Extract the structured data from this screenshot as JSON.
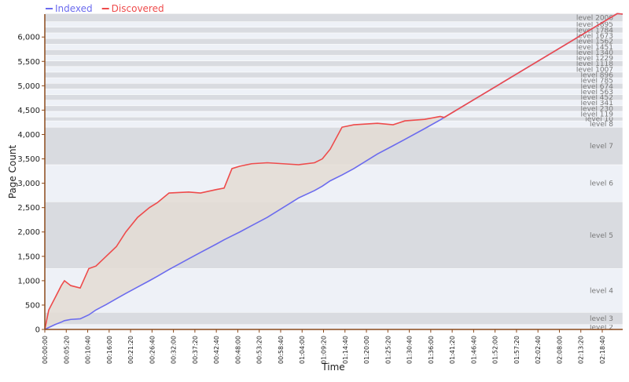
{
  "chart_data": {
    "type": "line",
    "y_label": "Page Count",
    "x_label": "Time",
    "x": [
      0,
      59,
      153,
      246,
      293,
      387,
      528,
      657,
      763,
      915,
      1068,
      1209,
      1385,
      1561,
      1678,
      1854,
      2147,
      2324,
      2558,
      2676,
      2793,
      2910,
      3086,
      3321,
      3790,
      4025,
      4142,
      4260,
      4436,
      4612,
      4964,
      5198,
      5374,
      5668,
      5902,
      5961,
      8543,
      8625
    ],
    "series": [
      {
        "name": "Indexed",
        "color": "#6b6bee",
        "values": [
          0,
          40,
          100,
          150,
          180,
          205,
          218,
          300,
          400,
          510,
          630,
          740,
          870,
          1000,
          1090,
          1230,
          1450,
          1580,
          1750,
          1840,
          1920,
          2000,
          2130,
          2300,
          2700,
          2850,
          2940,
          3050,
          3170,
          3300,
          3600,
          3770,
          3900,
          4120,
          4300,
          4350,
          6480,
          6470
        ]
      },
      {
        "name": "Discovered",
        "color": "#ee4b4b",
        "values": [
          0,
          400,
          650,
          900,
          1000,
          900,
          850,
          1250,
          1300,
          1500,
          1700,
          2000,
          2300,
          2500,
          2600,
          2800,
          2820,
          2800,
          2870,
          2900,
          3300,
          3350,
          3400,
          3420,
          3380,
          3420,
          3500,
          3700,
          4150,
          4200,
          4230,
          4200,
          4280,
          4310,
          4370,
          4350,
          6480,
          6470
        ]
      }
    ],
    "xlim": [
      0,
      8625
    ],
    "ylim": [
      0,
      6470
    ],
    "yticks": [
      0,
      500,
      {
        "value": 1000,
        "label": "1,000"
      },
      {
        "value": 1500,
        "label": "1,500"
      },
      {
        "value": 2000,
        "label": "2,000"
      },
      {
        "value": 2500,
        "label": "2,500"
      },
      {
        "value": 3000,
        "label": "3,000"
      },
      {
        "value": 3500,
        "label": "3,500"
      },
      {
        "value": 4000,
        "label": "4,000"
      },
      {
        "value": 4500,
        "label": "4,500"
      },
      {
        "value": 5000,
        "label": "5,000"
      },
      {
        "value": 5500,
        "label": "5,500"
      },
      {
        "value": 6000,
        "label": "6,000"
      }
    ],
    "xticks": [
      {
        "value": 0,
        "label": "00:00:00"
      },
      {
        "value": 320,
        "label": "00:05:20"
      },
      {
        "value": 640,
        "label": "00:10:40"
      },
      {
        "value": 960,
        "label": "00:16:00"
      },
      {
        "value": 1280,
        "label": "00:21:20"
      },
      {
        "value": 1600,
        "label": "00:26:40"
      },
      {
        "value": 1920,
        "label": "00:32:00"
      },
      {
        "value": 2240,
        "label": "00:37:20"
      },
      {
        "value": 2560,
        "label": "00:42:40"
      },
      {
        "value": 2880,
        "label": "00:48:00"
      },
      {
        "value": 3200,
        "label": "00:53:20"
      },
      {
        "value": 3520,
        "label": "00:58:40"
      },
      {
        "value": 3840,
        "label": "01:04:00"
      },
      {
        "value": 4160,
        "label": "01:09:20"
      },
      {
        "value": 4480,
        "label": "01:14:40"
      },
      {
        "value": 4800,
        "label": "01:20:00"
      },
      {
        "value": 5120,
        "label": "01:25:20"
      },
      {
        "value": 5440,
        "label": "01:30:40"
      },
      {
        "value": 5760,
        "label": "01:36:00"
      },
      {
        "value": 6080,
        "label": "01:41:20"
      },
      {
        "value": 6400,
        "label": "01:46:40"
      },
      {
        "value": 6720,
        "label": "01:52:00"
      },
      {
        "value": 7040,
        "label": "01:57:20"
      },
      {
        "value": 7360,
        "label": "02:02:40"
      },
      {
        "value": 7680,
        "label": "02:08:00"
      },
      {
        "value": 8000,
        "label": "02:13:20"
      },
      {
        "value": 8320,
        "label": "02:18:40"
      }
    ],
    "levels": [
      {
        "label": "level 2",
        "from": 0,
        "to": 100
      },
      {
        "label": "level 3",
        "from": 100,
        "to": 350
      },
      {
        "label": "level 4",
        "from": 350,
        "to": 1250
      },
      {
        "label": "level 5",
        "from": 1250,
        "to": 2620
      },
      {
        "label": "level 6",
        "from": 2620,
        "to": 3380
      },
      {
        "label": "level 7",
        "from": 3380,
        "to": 4150
      },
      {
        "label": "level 8",
        "from": 4150,
        "to": 4280
      },
      {
        "label": "level 10",
        "from": 4280,
        "to": 4360
      },
      {
        "label": "level 119",
        "from": 4360,
        "to": 4475
      },
      {
        "label": "level 230",
        "from": 4475,
        "to": 4590
      },
      {
        "label": "level 341",
        "from": 4590,
        "to": 4705
      },
      {
        "label": "level 452",
        "from": 4705,
        "to": 4820
      },
      {
        "label": "level 563",
        "from": 4820,
        "to": 4935
      },
      {
        "label": "level 674",
        "from": 4935,
        "to": 5050
      },
      {
        "label": "level 785",
        "from": 5050,
        "to": 5165
      },
      {
        "label": "level 896",
        "from": 5165,
        "to": 5280
      },
      {
        "label": "level 1007",
        "from": 5280,
        "to": 5395
      },
      {
        "label": "level 1118",
        "from": 5395,
        "to": 5510
      },
      {
        "label": "level 1229",
        "from": 5510,
        "to": 5625
      },
      {
        "label": "level 1340",
        "from": 5625,
        "to": 5740
      },
      {
        "label": "level 1451",
        "from": 5740,
        "to": 5855
      },
      {
        "label": "level 1562",
        "from": 5855,
        "to": 5970
      },
      {
        "label": "level 1673",
        "from": 5970,
        "to": 6085
      },
      {
        "label": "level 1784",
        "from": 6085,
        "to": 6200
      },
      {
        "label": "level 1895",
        "from": 6200,
        "to": 6315
      },
      {
        "label": "level 2006",
        "from": 6315,
        "to": 6480
      }
    ],
    "legend": "top-left",
    "grid": false
  }
}
